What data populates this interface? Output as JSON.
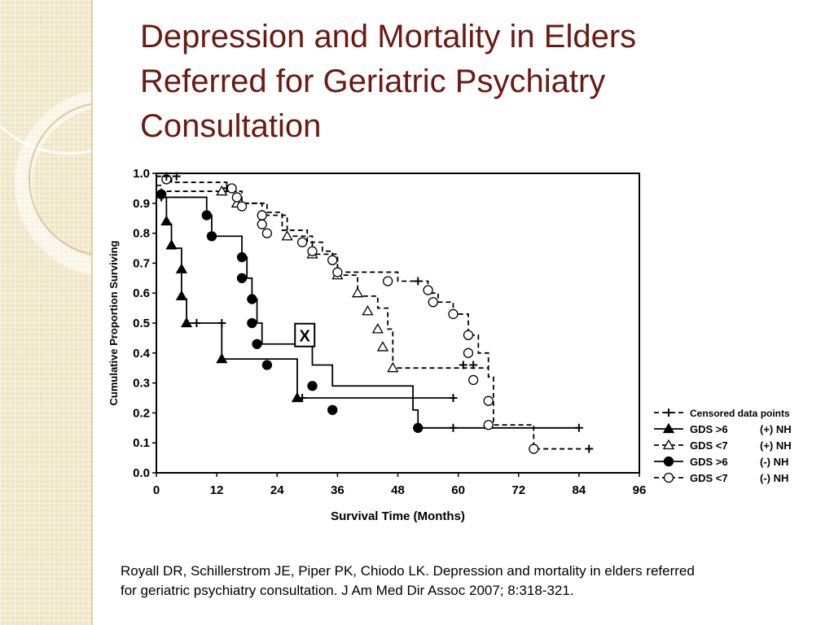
{
  "slide": {
    "title_lines": [
      "Depression and Mortality in Elders",
      "Referred for Geriatric Psychiatry",
      "Consultation"
    ],
    "citation_lines": [
      "Royall DR, Schillerstrom JE, Piper PK, Chiodo LK. Depression and mortality in elders referred",
      "for geriatric psychiatry consultation. J Am Med Dir Assoc 2007; 8:318-321."
    ],
    "colors": {
      "title": "#6b1a12",
      "sidebar": "#efe6c6"
    }
  },
  "chart_data": {
    "type": "line",
    "subtype": "kaplan-meier-step",
    "xlabel": "Survival Time (Months)",
    "ylabel": "Cumulative Proportion Surviving",
    "xlim": [
      0,
      96
    ],
    "ylim": [
      0.0,
      1.0
    ],
    "xticks": [
      0,
      12,
      24,
      36,
      48,
      60,
      72,
      84,
      96
    ],
    "yticks": [
      0.0,
      0.1,
      0.2,
      0.3,
      0.4,
      0.5,
      0.6,
      0.7,
      0.8,
      0.9,
      1.0
    ],
    "grid": false,
    "legend_position": "right",
    "annotation": "X",
    "legend_header": "Censored data points",
    "series": [
      {
        "name": "GDS >6",
        "nh": "(+) NH",
        "style": "solid",
        "marker": "triangle-filled",
        "x": [
          0,
          2,
          3,
          5,
          6,
          13,
          28,
          59
        ],
        "y": [
          0.92,
          0.83,
          0.75,
          0.58,
          0.5,
          0.38,
          0.25,
          0.25
        ],
        "markers": [
          [
            2,
            0.84
          ],
          [
            3,
            0.76
          ],
          [
            5,
            0.68
          ],
          [
            5,
            0.59
          ],
          [
            6,
            0.5
          ],
          [
            13,
            0.38
          ],
          [
            28,
            0.25
          ]
        ],
        "censored": [
          [
            1,
            0.92
          ],
          [
            8,
            0.5
          ],
          [
            13,
            0.5
          ],
          [
            29,
            0.25
          ],
          [
            59,
            0.25
          ]
        ]
      },
      {
        "name": "GDS <7",
        "nh": "(+) NH",
        "style": "dashed",
        "marker": "triangle-open",
        "x": [
          0,
          1,
          12,
          16,
          21,
          26,
          31,
          36,
          40,
          44,
          46,
          47,
          66
        ],
        "y": [
          0.96,
          0.94,
          0.94,
          0.9,
          0.86,
          0.79,
          0.73,
          0.66,
          0.59,
          0.55,
          0.48,
          0.35,
          0.35
        ],
        "markers": [
          [
            13,
            0.94
          ],
          [
            16,
            0.9
          ],
          [
            26,
            0.79
          ],
          [
            31,
            0.73
          ],
          [
            36,
            0.66
          ],
          [
            40,
            0.6
          ],
          [
            42,
            0.54
          ],
          [
            44,
            0.48
          ],
          [
            45,
            0.42
          ],
          [
            47,
            0.35
          ]
        ],
        "censored": [
          [
            14,
            0.95
          ],
          [
            61,
            0.36
          ],
          [
            63,
            0.36
          ]
        ]
      },
      {
        "name": "GDS >6",
        "nh": "(-) NH",
        "style": "solid",
        "marker": "circle-filled",
        "x": [
          0,
          1,
          10,
          11,
          17,
          18,
          19,
          20,
          21,
          31,
          35,
          51,
          52,
          84
        ],
        "y": [
          0.93,
          0.92,
          0.86,
          0.79,
          0.72,
          0.65,
          0.58,
          0.5,
          0.43,
          0.36,
          0.29,
          0.21,
          0.15,
          0.15
        ],
        "markers": [
          [
            1,
            0.93
          ],
          [
            10,
            0.86
          ],
          [
            11,
            0.79
          ],
          [
            17,
            0.72
          ],
          [
            17,
            0.65
          ],
          [
            19,
            0.58
          ],
          [
            19,
            0.5
          ],
          [
            20,
            0.43
          ],
          [
            22,
            0.36
          ],
          [
            31,
            0.29
          ],
          [
            35,
            0.21
          ],
          [
            52,
            0.15
          ]
        ],
        "censored": [
          [
            59,
            0.15
          ],
          [
            84,
            0.15
          ]
        ]
      },
      {
        "name": "GDS <7",
        "nh": "(-) NH",
        "style": "dashed",
        "marker": "circle-open",
        "x": [
          0,
          3,
          14,
          17,
          22,
          25,
          30,
          33,
          35,
          36,
          48,
          54,
          56,
          59,
          62,
          64,
          66,
          67,
          75,
          85
        ],
        "y": [
          0.99,
          0.97,
          0.94,
          0.9,
          0.87,
          0.81,
          0.77,
          0.74,
          0.71,
          0.67,
          0.64,
          0.6,
          0.57,
          0.53,
          0.46,
          0.4,
          0.32,
          0.16,
          0.08,
          0.08
        ],
        "markers": [
          [
            2,
            0.98
          ],
          [
            15,
            0.95
          ],
          [
            16,
            0.92
          ],
          [
            17,
            0.89
          ],
          [
            21,
            0.86
          ],
          [
            21,
            0.83
          ],
          [
            22,
            0.8
          ],
          [
            29,
            0.77
          ],
          [
            31,
            0.74
          ],
          [
            35,
            0.71
          ],
          [
            36,
            0.67
          ],
          [
            46,
            0.64
          ],
          [
            54,
            0.61
          ],
          [
            55,
            0.57
          ],
          [
            59,
            0.53
          ],
          [
            62,
            0.46
          ],
          [
            62,
            0.4
          ],
          [
            63,
            0.31
          ],
          [
            66,
            0.24
          ],
          [
            66,
            0.16
          ],
          [
            75,
            0.08
          ]
        ],
        "censored": [
          [
            2,
            0.99
          ],
          [
            4,
            0.99
          ],
          [
            52,
            0.64
          ],
          [
            86,
            0.08
          ]
        ]
      }
    ]
  }
}
